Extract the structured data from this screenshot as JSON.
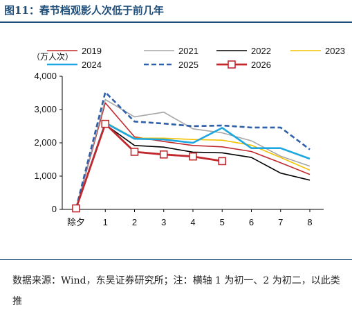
{
  "title": "图11：春节档观影人次低于前几年",
  "note": "数据来源：Wind，东吴证券研究所；注：横轴 1 为初一、2 为初二，以此类推",
  "chart_data": {
    "type": "line",
    "unit_label": "（万人次）",
    "categories": [
      "除夕",
      "1",
      "2",
      "3",
      "4",
      "5",
      "6",
      "7",
      "8"
    ],
    "ylim": [
      0,
      4000
    ],
    "yticks": [
      0,
      1000,
      2000,
      3000,
      4000
    ],
    "ytick_labels": [
      "0",
      "1,000",
      "2,000",
      "3,000",
      "4,000"
    ],
    "legend_placement": "top",
    "series": [
      {
        "name": "2019",
        "color": "#c0282d",
        "dash": "",
        "width": 1.6,
        "marker": false,
        "values": [
          30,
          3200,
          2180,
          2040,
          1920,
          1880,
          1740,
          1400,
          1050
        ]
      },
      {
        "name": "2021",
        "color": "#a6a6a6",
        "dash": "",
        "width": 1.6,
        "marker": false,
        "values": [
          30,
          3300,
          2780,
          2920,
          2420,
          2300,
          2060,
          1600,
          1300
        ]
      },
      {
        "name": "2022",
        "color": "#000000",
        "dash": "",
        "width": 1.6,
        "marker": false,
        "values": [
          30,
          2550,
          1920,
          1870,
          1720,
          1700,
          1560,
          1090,
          880
        ]
      },
      {
        "name": "2023",
        "color": "#f2c200",
        "dash": "",
        "width": 1.6,
        "marker": false,
        "values": [
          30,
          2620,
          2140,
          2140,
          2100,
          2080,
          1930,
          1560,
          1180
        ]
      },
      {
        "name": "2024",
        "color": "#1ca7e0",
        "dash": "",
        "width": 2.6,
        "marker": false,
        "values": [
          30,
          2600,
          2120,
          2100,
          2000,
          2450,
          1840,
          1840,
          1520
        ]
      },
      {
        "name": "2025",
        "color": "#2e5fa8",
        "dash": "7,4",
        "width": 2.6,
        "marker": false,
        "values": [
          30,
          3520,
          2640,
          2580,
          2500,
          2520,
          2460,
          2460,
          1800
        ]
      },
      {
        "name": "2026",
        "color": "#c0282d",
        "dash": "",
        "width": 2.8,
        "marker": true,
        "values": [
          30,
          2570,
          1730,
          1650,
          1590,
          1450,
          null,
          null,
          null
        ]
      }
    ]
  }
}
